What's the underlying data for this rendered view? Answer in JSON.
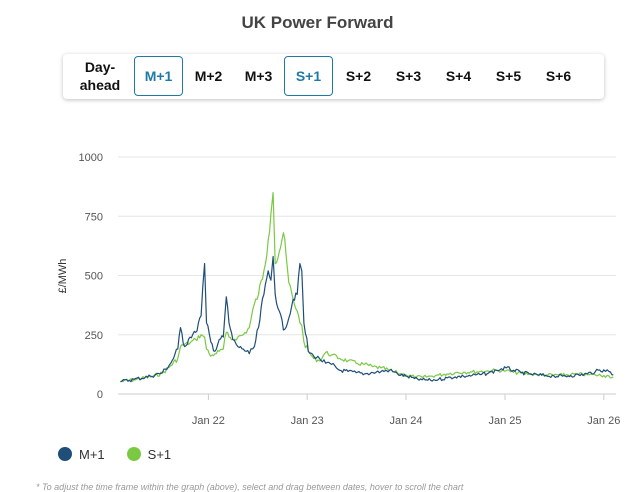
{
  "page_title": "UK Power Forward",
  "tabs": [
    {
      "label": "Day-ahead",
      "active": false
    },
    {
      "label": "M+1",
      "active": true
    },
    {
      "label": "M+2",
      "active": false
    },
    {
      "label": "M+3",
      "active": false
    },
    {
      "label": "S+1",
      "active": true
    },
    {
      "label": "S+2",
      "active": false
    },
    {
      "label": "S+3",
      "active": false
    },
    {
      "label": "S+4",
      "active": false
    },
    {
      "label": "S+5",
      "active": false
    },
    {
      "label": "S+6",
      "active": false
    }
  ],
  "colors": {
    "m1": "#1f4e79",
    "s1": "#7ac943",
    "active_tab": "#1f7aa8",
    "grid": "#e6e6e6"
  },
  "footnote": "* To adjust the time frame within the graph (above), select and drag between dates, hover to scroll the chart",
  "chart_data": {
    "type": "line",
    "title": "UK Power Forward",
    "ylabel": "£/MWh",
    "xlabel": "",
    "ylim": [
      0,
      1000
    ],
    "yticks": [
      0,
      250,
      500,
      750,
      1000
    ],
    "xlim": [
      "2021-02-01",
      "2026-02-15"
    ],
    "xticks": [
      {
        "label": "Jan 22",
        "date": "2022-01-01"
      },
      {
        "label": "Jan 23",
        "date": "2023-01-01"
      },
      {
        "label": "Jan 24",
        "date": "2024-01-01"
      },
      {
        "label": "Jan 25",
        "date": "2025-01-01"
      },
      {
        "label": "Jan 26",
        "date": "2026-01-01"
      }
    ],
    "grid": true,
    "legend": "bottom-left",
    "series": [
      {
        "name": "M+1",
        "points": [
          [
            "2021-02-10",
            52
          ],
          [
            "2021-04-01",
            62
          ],
          [
            "2021-06-01",
            75
          ],
          [
            "2021-07-15",
            90
          ],
          [
            "2021-08-15",
            130
          ],
          [
            "2021-09-10",
            190
          ],
          [
            "2021-09-20",
            280
          ],
          [
            "2021-10-05",
            200
          ],
          [
            "2021-10-25",
            240
          ],
          [
            "2021-11-15",
            260
          ],
          [
            "2021-12-05",
            330
          ],
          [
            "2021-12-18",
            550
          ],
          [
            "2021-12-25",
            300
          ],
          [
            "2022-01-10",
            220
          ],
          [
            "2022-01-25",
            180
          ],
          [
            "2022-02-10",
            230
          ],
          [
            "2022-02-25",
            240
          ],
          [
            "2022-03-08",
            410
          ],
          [
            "2022-03-18",
            300
          ],
          [
            "2022-04-01",
            230
          ],
          [
            "2022-04-20",
            200
          ],
          [
            "2022-05-10",
            190
          ],
          [
            "2022-06-01",
            170
          ],
          [
            "2022-06-20",
            200
          ],
          [
            "2022-07-05",
            280
          ],
          [
            "2022-07-25",
            420
          ],
          [
            "2022-08-10",
            520
          ],
          [
            "2022-08-20",
            480
          ],
          [
            "2022-08-28",
            580
          ],
          [
            "2022-09-05",
            420
          ],
          [
            "2022-09-20",
            350
          ],
          [
            "2022-10-05",
            270
          ],
          [
            "2022-10-25",
            320
          ],
          [
            "2022-11-10",
            400
          ],
          [
            "2022-11-25",
            420
          ],
          [
            "2022-12-05",
            550
          ],
          [
            "2022-12-12",
            520
          ],
          [
            "2022-12-20",
            300
          ],
          [
            "2023-01-05",
            180
          ],
          [
            "2023-01-25",
            160
          ],
          [
            "2023-02-15",
            150
          ],
          [
            "2023-03-10",
            130
          ],
          [
            "2023-04-01",
            125
          ],
          [
            "2023-05-01",
            100
          ],
          [
            "2023-06-01",
            95
          ],
          [
            "2023-07-01",
            90
          ],
          [
            "2023-08-01",
            85
          ],
          [
            "2023-09-01",
            90
          ],
          [
            "2023-10-01",
            95
          ],
          [
            "2023-11-01",
            100
          ],
          [
            "2023-12-01",
            85
          ],
          [
            "2024-01-01",
            75
          ],
          [
            "2024-02-01",
            65
          ],
          [
            "2024-03-01",
            60
          ],
          [
            "2024-04-01",
            58
          ],
          [
            "2024-05-01",
            62
          ],
          [
            "2024-06-01",
            68
          ],
          [
            "2024-07-01",
            72
          ],
          [
            "2024-08-01",
            75
          ],
          [
            "2024-09-01",
            78
          ],
          [
            "2024-10-01",
            82
          ],
          [
            "2024-11-01",
            88
          ],
          [
            "2024-12-01",
            100
          ],
          [
            "2025-01-05",
            110
          ],
          [
            "2025-02-01",
            100
          ],
          [
            "2025-03-01",
            90
          ],
          [
            "2025-04-01",
            85
          ],
          [
            "2025-05-01",
            80
          ],
          [
            "2025-06-01",
            78
          ],
          [
            "2025-07-01",
            76
          ],
          [
            "2025-08-01",
            75
          ],
          [
            "2025-09-01",
            78
          ],
          [
            "2025-10-01",
            80
          ],
          [
            "2025-11-01",
            85
          ],
          [
            "2025-12-01",
            95
          ],
          [
            "2026-01-01",
            102
          ],
          [
            "2026-01-20",
            95
          ],
          [
            "2026-02-05",
            80
          ]
        ]
      },
      {
        "name": "S+1",
        "points": [
          [
            "2021-02-10",
            52
          ],
          [
            "2021-04-01",
            60
          ],
          [
            "2021-06-01",
            72
          ],
          [
            "2021-07-15",
            88
          ],
          [
            "2021-08-15",
            120
          ],
          [
            "2021-09-10",
            150
          ],
          [
            "2021-09-20",
            200
          ],
          [
            "2021-10-05",
            210
          ],
          [
            "2021-10-25",
            215
          ],
          [
            "2021-11-15",
            230
          ],
          [
            "2021-12-05",
            250
          ],
          [
            "2021-12-18",
            240
          ],
          [
            "2021-12-25",
            190
          ],
          [
            "2022-01-10",
            160
          ],
          [
            "2022-01-25",
            170
          ],
          [
            "2022-02-10",
            180
          ],
          [
            "2022-02-25",
            190
          ],
          [
            "2022-03-08",
            260
          ],
          [
            "2022-03-18",
            240
          ],
          [
            "2022-04-01",
            230
          ],
          [
            "2022-04-20",
            240
          ],
          [
            "2022-05-10",
            250
          ],
          [
            "2022-06-01",
            280
          ],
          [
            "2022-06-20",
            380
          ],
          [
            "2022-07-05",
            420
          ],
          [
            "2022-07-25",
            520
          ],
          [
            "2022-08-10",
            650
          ],
          [
            "2022-08-20",
            760
          ],
          [
            "2022-08-28",
            850
          ],
          [
            "2022-09-05",
            550
          ],
          [
            "2022-09-20",
            600
          ],
          [
            "2022-10-05",
            680
          ],
          [
            "2022-10-25",
            470
          ],
          [
            "2022-11-10",
            400
          ],
          [
            "2022-11-25",
            350
          ],
          [
            "2022-12-05",
            300
          ],
          [
            "2022-12-12",
            290
          ],
          [
            "2022-12-20",
            220
          ],
          [
            "2023-01-05",
            180
          ],
          [
            "2023-01-25",
            150
          ],
          [
            "2023-02-15",
            140
          ],
          [
            "2023-03-10",
            175
          ],
          [
            "2023-04-01",
            165
          ],
          [
            "2023-05-01",
            150
          ],
          [
            "2023-06-01",
            140
          ],
          [
            "2023-07-01",
            130
          ],
          [
            "2023-08-01",
            125
          ],
          [
            "2023-09-01",
            115
          ],
          [
            "2023-10-01",
            110
          ],
          [
            "2023-11-01",
            100
          ],
          [
            "2023-12-01",
            88
          ],
          [
            "2024-01-01",
            80
          ],
          [
            "2024-02-01",
            72
          ],
          [
            "2024-03-01",
            70
          ],
          [
            "2024-04-01",
            75
          ],
          [
            "2024-05-01",
            80
          ],
          [
            "2024-06-01",
            85
          ],
          [
            "2024-07-01",
            90
          ],
          [
            "2024-08-01",
            92
          ],
          [
            "2024-09-01",
            93
          ],
          [
            "2024-10-01",
            95
          ],
          [
            "2024-11-01",
            97
          ],
          [
            "2024-12-01",
            100
          ],
          [
            "2025-01-05",
            98
          ],
          [
            "2025-02-01",
            92
          ],
          [
            "2025-03-01",
            88
          ],
          [
            "2025-04-01",
            85
          ],
          [
            "2025-05-01",
            82
          ],
          [
            "2025-06-01",
            80
          ],
          [
            "2025-07-01",
            80
          ],
          [
            "2025-08-01",
            80
          ],
          [
            "2025-09-01",
            82
          ],
          [
            "2025-10-01",
            83
          ],
          [
            "2025-11-01",
            82
          ],
          [
            "2025-12-01",
            80
          ],
          [
            "2026-01-01",
            78
          ],
          [
            "2026-01-20",
            76
          ],
          [
            "2026-02-05",
            72
          ]
        ]
      }
    ]
  }
}
